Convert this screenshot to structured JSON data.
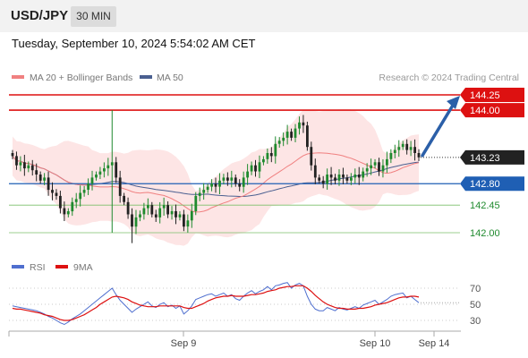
{
  "header": {
    "pair": "USD/JPY",
    "timeframe": "30 MIN"
  },
  "datetime": "Tuesday, September 10, 2024 5:54:02 AM CET",
  "legend": {
    "ma20": "MA 20 + Bollinger Bands",
    "ma50": "MA 50"
  },
  "credit": "Research © 2024 Trading Central",
  "colors": {
    "up": "#1f8a2e",
    "down": "#222222",
    "resistance": "#dd1111",
    "support": "#1f5fb4",
    "ma20": "#f08080",
    "ma50": "#4a5f90",
    "band": "#fde0e0"
  },
  "chart_data": [
    {
      "type": "candlestick",
      "ylim": [
        141.8,
        144.4
      ],
      "x_ticks": [
        "Sep 9",
        "Sep 10",
        "Sep 14"
      ],
      "levels": [
        {
          "value": "144.25",
          "kind": "resistance"
        },
        {
          "value": "144.00",
          "kind": "resistance"
        },
        {
          "value": "143.23",
          "kind": "last"
        },
        {
          "value": "142.80",
          "kind": "support"
        },
        {
          "value": "142.45",
          "kind": "target"
        },
        {
          "value": "142.00",
          "kind": "target"
        }
      ],
      "projection": {
        "from": 143.23,
        "to": 144.25
      },
      "closes": [
        143.25,
        143.1,
        143.15,
        143.05,
        143.1,
        143.02,
        142.95,
        142.85,
        142.9,
        142.7,
        142.65,
        142.6,
        142.4,
        142.3,
        142.35,
        142.5,
        142.55,
        142.65,
        142.7,
        142.8,
        142.9,
        142.95,
        143.0,
        143.05,
        143.1,
        143.15,
        142.9,
        142.6,
        142.5,
        142.3,
        142.1,
        142.25,
        142.3,
        142.4,
        142.45,
        142.3,
        142.25,
        142.4,
        142.45,
        142.3,
        142.35,
        142.25,
        142.3,
        142.1,
        142.2,
        142.35,
        142.6,
        142.65,
        142.7,
        142.75,
        142.8,
        142.75,
        142.85,
        142.9,
        142.85,
        142.9,
        142.8,
        142.75,
        142.9,
        143.0,
        143.1,
        143.0,
        143.15,
        143.2,
        143.3,
        143.25,
        143.45,
        143.5,
        143.55,
        143.65,
        143.55,
        143.7,
        143.8,
        143.75,
        143.4,
        143.1,
        142.9,
        142.85,
        142.8,
        142.95,
        142.9,
        142.85,
        142.95,
        142.9,
        142.85,
        142.9,
        142.95,
        142.9,
        143.0,
        143.05,
        143.1,
        143.15,
        143.0,
        143.1,
        143.2,
        143.3,
        143.35,
        143.4,
        143.45,
        143.35,
        143.4,
        143.3,
        143.23
      ]
    },
    {
      "type": "line",
      "series": [
        {
          "name": "RSI"
        },
        {
          "name": "9MA"
        }
      ],
      "y_ticks": [
        "70",
        "50",
        "30"
      ],
      "rsi": [
        48,
        47,
        46,
        45,
        44,
        43,
        42,
        40,
        38,
        35,
        33,
        30,
        27,
        25,
        28,
        32,
        35,
        38,
        42,
        46,
        50,
        54,
        58,
        62,
        66,
        70,
        62,
        55,
        50,
        45,
        40,
        44,
        47,
        50,
        53,
        48,
        46,
        50,
        52,
        47,
        49,
        45,
        48,
        38,
        42,
        48,
        56,
        58,
        60,
        62,
        63,
        60,
        62,
        64,
        60,
        62,
        57,
        55,
        60,
        64,
        67,
        63,
        66,
        68,
        72,
        68,
        73,
        74,
        76,
        77,
        70,
        74,
        76,
        73,
        60,
        50,
        44,
        42,
        42,
        46,
        44,
        42,
        46,
        44,
        43,
        45,
        47,
        45,
        49,
        51,
        53,
        55,
        50,
        53,
        56,
        60,
        62,
        63,
        64,
        58,
        60,
        56,
        52
      ],
      "ma9": [
        45,
        44,
        44,
        43,
        42,
        41,
        40,
        39,
        37,
        36,
        35,
        33,
        31,
        30,
        30,
        31,
        33,
        35,
        37,
        40,
        43,
        46,
        50,
        53,
        56,
        59,
        60,
        59,
        58,
        56,
        53,
        51,
        49,
        48,
        47,
        47,
        47,
        48,
        48,
        48,
        48,
        48,
        48,
        46,
        45,
        45,
        47,
        49,
        51,
        54,
        56,
        58,
        59,
        60,
        60,
        61,
        60,
        60,
        60,
        61,
        62,
        62,
        63,
        64,
        66,
        67,
        68,
        70,
        71,
        72,
        72,
        73,
        73,
        73,
        70,
        66,
        61,
        57,
        53,
        50,
        48,
        46,
        45,
        45,
        44,
        44,
        44,
        45,
        45,
        46,
        47,
        49,
        50,
        51,
        52,
        54,
        56,
        58,
        59,
        59,
        60,
        60,
        59
      ]
    }
  ]
}
